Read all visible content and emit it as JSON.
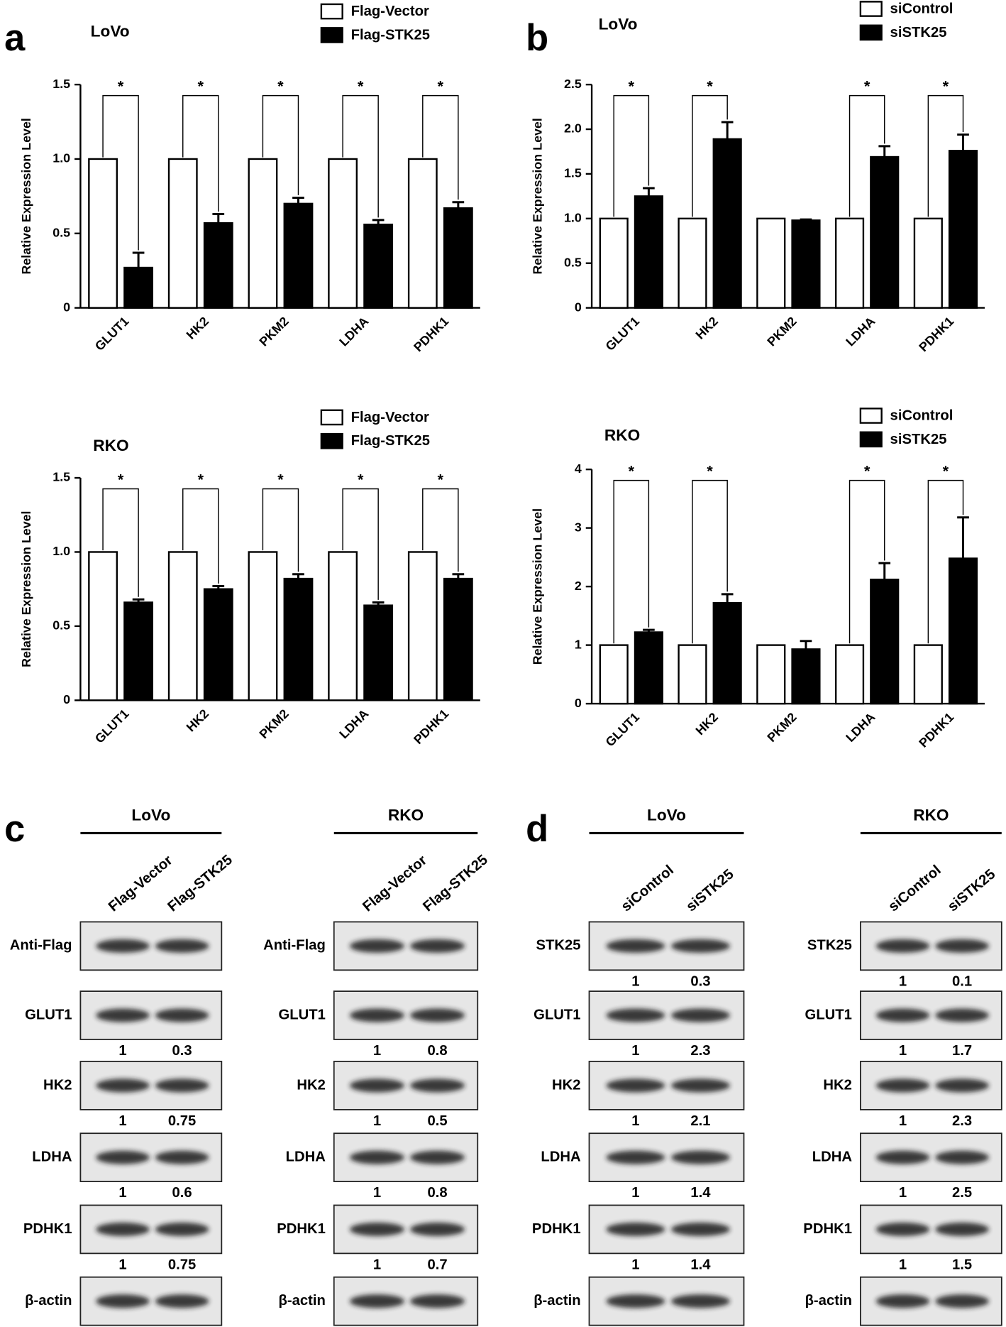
{
  "chart_data": [
    {
      "type": "bar",
      "panel": "a",
      "title": "LoVo",
      "ylabel": "Relative Expression Level",
      "categories": [
        "GLUT1",
        "HK2",
        "PKM2",
        "LDHA",
        "PDHK1"
      ],
      "series": [
        {
          "name": "Flag-Vector",
          "color": "#ffffff",
          "values": [
            1,
            1,
            1,
            1,
            1
          ]
        },
        {
          "name": "Flag-STK25",
          "color": "#000000",
          "values": [
            0.27,
            0.57,
            0.7,
            0.56,
            0.67
          ],
          "errors": [
            0.1,
            0.06,
            0.04,
            0.03,
            0.04
          ]
        }
      ],
      "significance": [
        "*",
        "*",
        "*",
        "*",
        "*"
      ],
      "ylim": [
        0,
        1.5
      ],
      "yticks": [
        0,
        0.5,
        {
          "value": 1,
          "label": "1.0"
        },
        1.5
      ]
    },
    {
      "type": "bar",
      "title": "RKO",
      "ylabel": "Relative Expression Level",
      "categories": [
        "GLUT1",
        "HK2",
        "PKM2",
        "LDHA",
        "PDHK1"
      ],
      "series": [
        {
          "name": "Flag-Vector",
          "color": "#ffffff",
          "values": [
            1,
            1,
            1,
            1,
            1
          ]
        },
        {
          "name": "Flag-STK25",
          "color": "#000000",
          "values": [
            0.66,
            0.75,
            0.82,
            0.64,
            0.82
          ],
          "errors": [
            0.02,
            0.02,
            0.03,
            0.02,
            0.03
          ]
        }
      ],
      "significance": [
        "*",
        "*",
        "*",
        "*",
        "*"
      ],
      "ylim": [
        0,
        1.5
      ],
      "yticks": [
        0,
        0.5,
        {
          "value": 1,
          "label": "1.0"
        },
        1.5
      ]
    },
    {
      "type": "bar",
      "panel": "b",
      "title": "LoVo",
      "ylabel": "Relative Expression Level",
      "categories": [
        "GLUT1",
        "HK2",
        "PKM2",
        "LDHA",
        "PDHK1"
      ],
      "series": [
        {
          "name": "siControl",
          "color": "#ffffff",
          "values": [
            1,
            1,
            1,
            1,
            1
          ]
        },
        {
          "name": "siSTK25",
          "color": "#000000",
          "values": [
            1.25,
            1.89,
            0.98,
            1.69,
            1.76
          ],
          "errors": [
            0.09,
            0.19,
            0.01,
            0.12,
            0.18
          ]
        }
      ],
      "significance": [
        "*",
        "*",
        null,
        "*",
        "*"
      ],
      "ylim": [
        0,
        2.5
      ],
      "yticks": [
        0,
        0.5,
        {
          "value": 1,
          "label": "1.0"
        },
        1.5,
        {
          "value": 2,
          "label": "2.0"
        },
        2.5
      ]
    },
    {
      "type": "bar",
      "title": "RKO",
      "ylabel": "Relative Expression Level",
      "categories": [
        "GLUT1",
        "HK2",
        "PKM2",
        "LDHA",
        "PDHK1"
      ],
      "series": [
        {
          "name": "siControl",
          "color": "#ffffff",
          "values": [
            1,
            1,
            1,
            1,
            1
          ]
        },
        {
          "name": "siSTK25",
          "color": "#000000",
          "values": [
            1.22,
            1.72,
            0.93,
            2.12,
            2.48
          ],
          "errors": [
            0.04,
            0.15,
            0.14,
            0.28,
            0.7
          ]
        }
      ],
      "significance": [
        "*",
        "*",
        null,
        "*",
        "*"
      ],
      "ylim": [
        0,
        4
      ],
      "yticks": [
        0,
        1,
        2,
        3,
        4
      ]
    }
  ],
  "blots": [
    {
      "panel": "c",
      "groups": [
        {
          "cell_line": "LoVo",
          "lanes": [
            "Flag-Vector",
            "Flag-STK25"
          ],
          "rows": [
            {
              "label": "Anti-Flag"
            },
            {
              "label": "GLUT1",
              "quantities": [
                1,
                0.3
              ]
            },
            {
              "label": "HK2",
              "quantities": [
                1,
                0.75
              ]
            },
            {
              "label": "LDHA",
              "quantities": [
                1,
                0.6
              ]
            },
            {
              "label": "PDHK1",
              "quantities": [
                1,
                0.75
              ]
            },
            {
              "label": "β-actin"
            }
          ]
        },
        {
          "cell_line": "RKO",
          "lanes": [
            "Flag-Vector",
            "Flag-STK25"
          ],
          "rows": [
            {
              "label": "Anti-Flag"
            },
            {
              "label": "GLUT1",
              "quantities": [
                1,
                0.8
              ]
            },
            {
              "label": "HK2",
              "quantities": [
                1,
                0.5
              ]
            },
            {
              "label": "LDHA",
              "quantities": [
                1,
                0.8
              ]
            },
            {
              "label": "PDHK1",
              "quantities": [
                1,
                0.7
              ]
            },
            {
              "label": "β-actin"
            }
          ]
        }
      ]
    },
    {
      "panel": "d",
      "groups": [
        {
          "cell_line": "LoVo",
          "lanes": [
            "siControl",
            "siSTK25"
          ],
          "rows": [
            {
              "label": "STK25",
              "quantities": [
                1,
                0.3
              ]
            },
            {
              "label": "GLUT1",
              "quantities": [
                1,
                2.3
              ]
            },
            {
              "label": "HK2",
              "quantities": [
                1,
                2.1
              ]
            },
            {
              "label": "LDHA",
              "quantities": [
                1,
                1.4
              ]
            },
            {
              "label": "PDHK1",
              "quantities": [
                1,
                1.4
              ]
            },
            {
              "label": "β-actin"
            }
          ]
        },
        {
          "cell_line": "RKO",
          "lanes": [
            "siControl",
            "siSTK25"
          ],
          "rows": [
            {
              "label": "STK25",
              "quantities": [
                1,
                0.1
              ]
            },
            {
              "label": "GLUT1",
              "quantities": [
                1,
                1.7
              ]
            },
            {
              "label": "HK2",
              "quantities": [
                1,
                2.3
              ]
            },
            {
              "label": "LDHA",
              "quantities": [
                1,
                2.5
              ]
            },
            {
              "label": "PDHK1",
              "quantities": [
                1,
                1.5
              ]
            },
            {
              "label": "β-actin"
            }
          ]
        }
      ]
    }
  ]
}
